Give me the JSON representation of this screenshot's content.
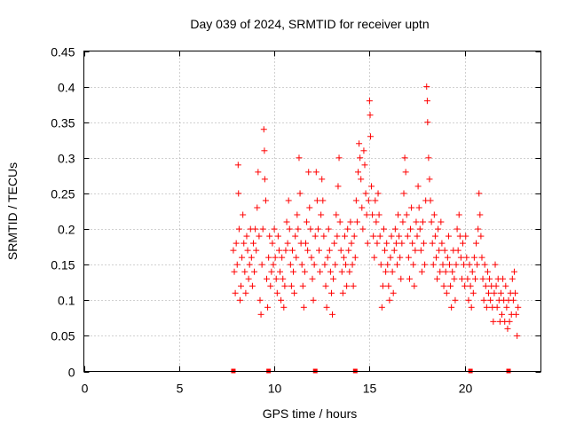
{
  "chart_data": {
    "type": "scatter",
    "title": "Day 039 of 2024, SRMTID for receiver uptn",
    "xlabel": "GPS time / hours",
    "ylabel": "SRMTID / TECUs",
    "xlim": [
      0,
      24.0
    ],
    "ylim": [
      0,
      0.45
    ],
    "xticks": [
      0,
      5,
      10,
      15,
      20
    ],
    "xtick_labels": [
      "0",
      "5",
      "10",
      "15",
      "20"
    ],
    "yticks": [
      0,
      0.05,
      0.1,
      0.15,
      0.2,
      0.25,
      0.3,
      0.35,
      0.4,
      0.45
    ],
    "ytick_labels": [
      "0",
      "0.05",
      "0.1",
      "0.15",
      "0.2",
      "0.25",
      "0.3",
      "0.35",
      "0.4",
      "0.45"
    ],
    "grid": true,
    "marker": "+",
    "color": "#ff0000",
    "series": [
      {
        "name": "SRMTID",
        "points": [
          [
            7.85,
            0.17
          ],
          [
            7.9,
            0.14
          ],
          [
            7.95,
            0.11
          ],
          [
            8.0,
            0.18
          ],
          [
            8.05,
            0.15
          ],
          [
            8.1,
            0.29
          ],
          [
            8.12,
            0.25
          ],
          [
            8.15,
            0.2
          ],
          [
            8.2,
            0.1
          ],
          [
            8.25,
            0.12
          ],
          [
            8.3,
            0.16
          ],
          [
            8.35,
            0.22
          ],
          [
            8.4,
            0.18
          ],
          [
            8.45,
            0.14
          ],
          [
            8.5,
            0.11
          ],
          [
            8.55,
            0.19
          ],
          [
            8.6,
            0.17
          ],
          [
            8.65,
            0.13
          ],
          [
            8.7,
            0.15
          ],
          [
            8.75,
            0.2
          ],
          [
            8.8,
            0.16
          ],
          [
            8.85,
            0.12
          ],
          [
            8.9,
            0.18
          ],
          [
            8.95,
            0.14
          ],
          [
            9.0,
            0.2
          ],
          [
            9.05,
            0.17
          ],
          [
            9.1,
            0.23
          ],
          [
            9.15,
            0.28
          ],
          [
            9.2,
            0.19
          ],
          [
            9.25,
            0.1
          ],
          [
            9.3,
            0.08
          ],
          [
            9.35,
            0.15
          ],
          [
            9.4,
            0.2
          ],
          [
            9.45,
            0.34
          ],
          [
            9.48,
            0.31
          ],
          [
            9.5,
            0.27
          ],
          [
            9.55,
            0.24
          ],
          [
            9.6,
            0.13
          ],
          [
            9.65,
            0.09
          ],
          [
            9.7,
            0.16
          ],
          [
            9.75,
            0.19
          ],
          [
            9.8,
            0.12
          ],
          [
            9.85,
            0.14
          ],
          [
            9.9,
            0.18
          ],
          [
            9.95,
            0.15
          ],
          [
            10.0,
            0.2
          ],
          [
            10.05,
            0.16
          ],
          [
            10.1,
            0.13
          ],
          [
            10.15,
            0.11
          ],
          [
            10.2,
            0.19
          ],
          [
            10.25,
            0.17
          ],
          [
            10.3,
            0.14
          ],
          [
            10.35,
            0.1
          ],
          [
            10.4,
            0.16
          ],
          [
            10.45,
            0.13
          ],
          [
            10.5,
            0.09
          ],
          [
            10.55,
            0.12
          ],
          [
            10.6,
            0.17
          ],
          [
            10.65,
            0.21
          ],
          [
            10.7,
            0.18
          ],
          [
            10.75,
            0.24
          ],
          [
            10.8,
            0.2
          ],
          [
            10.85,
            0.15
          ],
          [
            10.9,
            0.12
          ],
          [
            10.95,
            0.17
          ],
          [
            11.0,
            0.14
          ],
          [
            11.05,
            0.11
          ],
          [
            11.1,
            0.19
          ],
          [
            11.15,
            0.16
          ],
          [
            11.2,
            0.22
          ],
          [
            11.25,
            0.2
          ],
          [
            11.3,
            0.3
          ],
          [
            11.35,
            0.25
          ],
          [
            11.4,
            0.18
          ],
          [
            11.45,
            0.15
          ],
          [
            11.5,
            0.12
          ],
          [
            11.55,
            0.09
          ],
          [
            11.6,
            0.14
          ],
          [
            11.65,
            0.18
          ],
          [
            11.7,
            0.21
          ],
          [
            11.75,
            0.17
          ],
          [
            11.8,
            0.28
          ],
          [
            11.85,
            0.23
          ],
          [
            11.9,
            0.2
          ],
          [
            11.95,
            0.16
          ],
          [
            12.0,
            0.13
          ],
          [
            12.05,
            0.1
          ],
          [
            12.1,
            0.15
          ],
          [
            12.15,
            0.19
          ],
          [
            12.2,
            0.28
          ],
          [
            12.25,
            0.24
          ],
          [
            12.3,
            0.2
          ],
          [
            12.35,
            0.17
          ],
          [
            12.4,
            0.14
          ],
          [
            12.45,
            0.22
          ],
          [
            12.5,
            0.27
          ],
          [
            12.55,
            0.24
          ],
          [
            12.6,
            0.19
          ],
          [
            12.65,
            0.15
          ],
          [
            12.7,
            0.12
          ],
          [
            12.75,
            0.09
          ],
          [
            12.8,
            0.16
          ],
          [
            12.85,
            0.2
          ],
          [
            12.9,
            0.17
          ],
          [
            12.95,
            0.14
          ],
          [
            13.0,
            0.11
          ],
          [
            13.05,
            0.08
          ],
          [
            13.1,
            0.13
          ],
          [
            13.15,
            0.18
          ],
          [
            13.2,
            0.15
          ],
          [
            13.25,
            0.22
          ],
          [
            13.3,
            0.19
          ],
          [
            13.35,
            0.26
          ],
          [
            13.4,
            0.3
          ],
          [
            13.45,
            0.21
          ],
          [
            13.5,
            0.17
          ],
          [
            13.55,
            0.14
          ],
          [
            13.6,
            0.11
          ],
          [
            13.65,
            0.16
          ],
          [
            13.7,
            0.19
          ],
          [
            13.75,
            0.15
          ],
          [
            13.8,
            0.12
          ],
          [
            13.85,
            0.2
          ],
          [
            13.9,
            0.17
          ],
          [
            13.95,
            0.14
          ],
          [
            14.0,
            0.21
          ],
          [
            14.05,
            0.18
          ],
          [
            14.1,
            0.15
          ],
          [
            14.15,
            0.12
          ],
          [
            14.2,
            0.19
          ],
          [
            14.25,
            0.16
          ],
          [
            14.3,
            0.24
          ],
          [
            14.35,
            0.21
          ],
          [
            14.4,
            0.28
          ],
          [
            14.45,
            0.32
          ],
          [
            14.5,
            0.3
          ],
          [
            14.55,
            0.27
          ],
          [
            14.6,
            0.23
          ],
          [
            14.65,
            0.2
          ],
          [
            14.7,
            0.31
          ],
          [
            14.75,
            0.29
          ],
          [
            14.8,
            0.25
          ],
          [
            14.85,
            0.22
          ],
          [
            14.9,
            0.18
          ],
          [
            14.95,
            0.24
          ],
          [
            15.0,
            0.38
          ],
          [
            15.03,
            0.36
          ],
          [
            15.05,
            0.33
          ],
          [
            15.1,
            0.26
          ],
          [
            15.15,
            0.22
          ],
          [
            15.2,
            0.19
          ],
          [
            15.25,
            0.16
          ],
          [
            15.3,
            0.24
          ],
          [
            15.35,
            0.21
          ],
          [
            15.4,
            0.18
          ],
          [
            15.45,
            0.25
          ],
          [
            15.5,
            0.22
          ],
          [
            15.55,
            0.19
          ],
          [
            15.6,
            0.15
          ],
          [
            15.65,
            0.09
          ],
          [
            15.7,
            0.12
          ],
          [
            15.75,
            0.2
          ],
          [
            15.8,
            0.17
          ],
          [
            15.85,
            0.14
          ],
          [
            15.9,
            0.18
          ],
          [
            15.95,
            0.15
          ],
          [
            16.0,
            0.12
          ],
          [
            16.05,
            0.1
          ],
          [
            16.1,
            0.16
          ],
          [
            16.15,
            0.19
          ],
          [
            16.2,
            0.14
          ],
          [
            16.25,
            0.11
          ],
          [
            16.3,
            0.17
          ],
          [
            16.35,
            0.2
          ],
          [
            16.4,
            0.18
          ],
          [
            16.45,
            0.15
          ],
          [
            16.5,
            0.22
          ],
          [
            16.55,
            0.19
          ],
          [
            16.6,
            0.16
          ],
          [
            16.65,
            0.13
          ],
          [
            16.7,
            0.18
          ],
          [
            16.75,
            0.21
          ],
          [
            16.8,
            0.25
          ],
          [
            16.85,
            0.3
          ],
          [
            16.9,
            0.28
          ],
          [
            16.95,
            0.22
          ],
          [
            17.0,
            0.19
          ],
          [
            17.05,
            0.16
          ],
          [
            17.1,
            0.13
          ],
          [
            17.15,
            0.2
          ],
          [
            17.2,
            0.23
          ],
          [
            17.25,
            0.18
          ],
          [
            17.3,
            0.15
          ],
          [
            17.35,
            0.12
          ],
          [
            17.4,
            0.17
          ],
          [
            17.45,
            0.21
          ],
          [
            17.5,
            0.19
          ],
          [
            17.55,
            0.26
          ],
          [
            17.6,
            0.23
          ],
          [
            17.65,
            0.2
          ],
          [
            17.7,
            0.17
          ],
          [
            17.75,
            0.14
          ],
          [
            17.8,
            0.21
          ],
          [
            17.85,
            0.18
          ],
          [
            17.9,
            0.15
          ],
          [
            17.95,
            0.24
          ],
          [
            18.0,
            0.4
          ],
          [
            18.03,
            0.38
          ],
          [
            18.05,
            0.35
          ],
          [
            18.1,
            0.3
          ],
          [
            18.15,
            0.27
          ],
          [
            18.2,
            0.24
          ],
          [
            18.25,
            0.21
          ],
          [
            18.3,
            0.18
          ],
          [
            18.35,
            0.15
          ],
          [
            18.4,
            0.22
          ],
          [
            18.45,
            0.19
          ],
          [
            18.5,
            0.16
          ],
          [
            18.55,
            0.13
          ],
          [
            18.6,
            0.2
          ],
          [
            18.65,
            0.17
          ],
          [
            18.7,
            0.14
          ],
          [
            18.75,
            0.21
          ],
          [
            18.8,
            0.18
          ],
          [
            18.85,
            0.15
          ],
          [
            18.9,
            0.12
          ],
          [
            18.95,
            0.17
          ],
          [
            19.0,
            0.14
          ],
          [
            19.05,
            0.11
          ],
          [
            19.1,
            0.16
          ],
          [
            19.15,
            0.19
          ],
          [
            19.2,
            0.15
          ],
          [
            19.25,
            0.12
          ],
          [
            19.3,
            0.09
          ],
          [
            19.35,
            0.14
          ],
          [
            19.4,
            0.17
          ],
          [
            19.45,
            0.13
          ],
          [
            19.5,
            0.1
          ],
          [
            19.55,
            0.15
          ],
          [
            19.6,
            0.2
          ],
          [
            19.65,
            0.17
          ],
          [
            19.7,
            0.22
          ],
          [
            19.75,
            0.19
          ],
          [
            19.8,
            0.16
          ],
          [
            19.85,
            0.13
          ],
          [
            19.9,
            0.18
          ],
          [
            19.95,
            0.15
          ],
          [
            20.0,
            0.12
          ],
          [
            20.05,
            0.19
          ],
          [
            20.1,
            0.16
          ],
          [
            20.15,
            0.13
          ],
          [
            20.2,
            0.1
          ],
          [
            20.25,
            0.15
          ],
          [
            20.3,
            0.12
          ],
          [
            20.35,
            0.09
          ],
          [
            20.4,
            0.14
          ],
          [
            20.45,
            0.11
          ],
          [
            20.5,
            0.16
          ],
          [
            20.55,
            0.13
          ],
          [
            20.6,
            0.18
          ],
          [
            20.65,
            0.15
          ],
          [
            20.7,
            0.2
          ],
          [
            20.75,
            0.25
          ],
          [
            20.8,
            0.22
          ],
          [
            20.85,
            0.19
          ],
          [
            20.9,
            0.16
          ],
          [
            20.95,
            0.13
          ],
          [
            21.0,
            0.1
          ],
          [
            21.05,
            0.15
          ],
          [
            21.1,
            0.12
          ],
          [
            21.15,
            0.09
          ],
          [
            21.2,
            0.14
          ],
          [
            21.25,
            0.11
          ],
          [
            21.3,
            0.13
          ],
          [
            21.35,
            0.1
          ],
          [
            21.4,
            0.12
          ],
          [
            21.45,
            0.09
          ],
          [
            21.5,
            0.07
          ],
          [
            21.55,
            0.11
          ],
          [
            21.6,
            0.15
          ],
          [
            21.65,
            0.12
          ],
          [
            21.7,
            0.09
          ],
          [
            21.75,
            0.13
          ],
          [
            21.8,
            0.1
          ],
          [
            21.85,
            0.07
          ],
          [
            21.9,
            0.11
          ],
          [
            21.95,
            0.08
          ],
          [
            22.0,
            0.13
          ],
          [
            22.05,
            0.1
          ],
          [
            22.1,
            0.07
          ],
          [
            22.15,
            0.12
          ],
          [
            22.2,
            0.09
          ],
          [
            22.25,
            0.06
          ],
          [
            22.3,
            0.1
          ],
          [
            22.35,
            0.07
          ],
          [
            22.4,
            0.11
          ],
          [
            22.45,
            0.08
          ],
          [
            22.5,
            0.13
          ],
          [
            22.55,
            0.1
          ],
          [
            22.6,
            0.14
          ],
          [
            22.65,
            0.11
          ],
          [
            22.7,
            0.08
          ],
          [
            22.75,
            0.05
          ],
          [
            22.8,
            0.09
          ]
        ]
      }
    ],
    "gap_markers_x": [
      7.85,
      9.7,
      12.15,
      14.25,
      20.3,
      22.3
    ]
  }
}
